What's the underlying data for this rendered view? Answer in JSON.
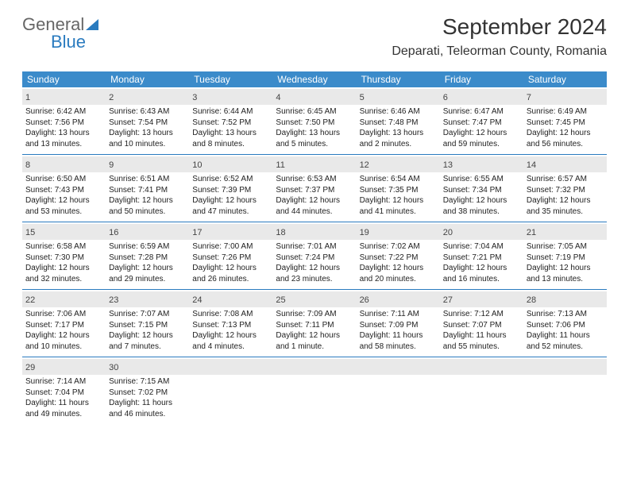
{
  "brand": {
    "part1": "General",
    "part2": "Blue"
  },
  "title": "September 2024",
  "location": "Deparati, Teleorman County, Romania",
  "colors": {
    "header_bg": "#3b8bca",
    "accent": "#2a7bbf",
    "daynum_bg": "#e9e9e9",
    "text": "#222222"
  },
  "weekdays": [
    "Sunday",
    "Monday",
    "Tuesday",
    "Wednesday",
    "Thursday",
    "Friday",
    "Saturday"
  ],
  "weeks": [
    [
      {
        "n": "1",
        "sr": "6:42 AM",
        "ss": "7:56 PM",
        "dl": "13 hours and 13 minutes."
      },
      {
        "n": "2",
        "sr": "6:43 AM",
        "ss": "7:54 PM",
        "dl": "13 hours and 10 minutes."
      },
      {
        "n": "3",
        "sr": "6:44 AM",
        "ss": "7:52 PM",
        "dl": "13 hours and 8 minutes."
      },
      {
        "n": "4",
        "sr": "6:45 AM",
        "ss": "7:50 PM",
        "dl": "13 hours and 5 minutes."
      },
      {
        "n": "5",
        "sr": "6:46 AM",
        "ss": "7:48 PM",
        "dl": "13 hours and 2 minutes."
      },
      {
        "n": "6",
        "sr": "6:47 AM",
        "ss": "7:47 PM",
        "dl": "12 hours and 59 minutes."
      },
      {
        "n": "7",
        "sr": "6:49 AM",
        "ss": "7:45 PM",
        "dl": "12 hours and 56 minutes."
      }
    ],
    [
      {
        "n": "8",
        "sr": "6:50 AM",
        "ss": "7:43 PM",
        "dl": "12 hours and 53 minutes."
      },
      {
        "n": "9",
        "sr": "6:51 AM",
        "ss": "7:41 PM",
        "dl": "12 hours and 50 minutes."
      },
      {
        "n": "10",
        "sr": "6:52 AM",
        "ss": "7:39 PM",
        "dl": "12 hours and 47 minutes."
      },
      {
        "n": "11",
        "sr": "6:53 AM",
        "ss": "7:37 PM",
        "dl": "12 hours and 44 minutes."
      },
      {
        "n": "12",
        "sr": "6:54 AM",
        "ss": "7:35 PM",
        "dl": "12 hours and 41 minutes."
      },
      {
        "n": "13",
        "sr": "6:55 AM",
        "ss": "7:34 PM",
        "dl": "12 hours and 38 minutes."
      },
      {
        "n": "14",
        "sr": "6:57 AM",
        "ss": "7:32 PM",
        "dl": "12 hours and 35 minutes."
      }
    ],
    [
      {
        "n": "15",
        "sr": "6:58 AM",
        "ss": "7:30 PM",
        "dl": "12 hours and 32 minutes."
      },
      {
        "n": "16",
        "sr": "6:59 AM",
        "ss": "7:28 PM",
        "dl": "12 hours and 29 minutes."
      },
      {
        "n": "17",
        "sr": "7:00 AM",
        "ss": "7:26 PM",
        "dl": "12 hours and 26 minutes."
      },
      {
        "n": "18",
        "sr": "7:01 AM",
        "ss": "7:24 PM",
        "dl": "12 hours and 23 minutes."
      },
      {
        "n": "19",
        "sr": "7:02 AM",
        "ss": "7:22 PM",
        "dl": "12 hours and 20 minutes."
      },
      {
        "n": "20",
        "sr": "7:04 AM",
        "ss": "7:21 PM",
        "dl": "12 hours and 16 minutes."
      },
      {
        "n": "21",
        "sr": "7:05 AM",
        "ss": "7:19 PM",
        "dl": "12 hours and 13 minutes."
      }
    ],
    [
      {
        "n": "22",
        "sr": "7:06 AM",
        "ss": "7:17 PM",
        "dl": "12 hours and 10 minutes."
      },
      {
        "n": "23",
        "sr": "7:07 AM",
        "ss": "7:15 PM",
        "dl": "12 hours and 7 minutes."
      },
      {
        "n": "24",
        "sr": "7:08 AM",
        "ss": "7:13 PM",
        "dl": "12 hours and 4 minutes."
      },
      {
        "n": "25",
        "sr": "7:09 AM",
        "ss": "7:11 PM",
        "dl": "12 hours and 1 minute."
      },
      {
        "n": "26",
        "sr": "7:11 AM",
        "ss": "7:09 PM",
        "dl": "11 hours and 58 minutes."
      },
      {
        "n": "27",
        "sr": "7:12 AM",
        "ss": "7:07 PM",
        "dl": "11 hours and 55 minutes."
      },
      {
        "n": "28",
        "sr": "7:13 AM",
        "ss": "7:06 PM",
        "dl": "11 hours and 52 minutes."
      }
    ],
    [
      {
        "n": "29",
        "sr": "7:14 AM",
        "ss": "7:04 PM",
        "dl": "11 hours and 49 minutes."
      },
      {
        "n": "30",
        "sr": "7:15 AM",
        "ss": "7:02 PM",
        "dl": "11 hours and 46 minutes."
      },
      null,
      null,
      null,
      null,
      null
    ]
  ],
  "labels": {
    "sunrise": "Sunrise:",
    "sunset": "Sunset:",
    "daylight": "Daylight:"
  }
}
